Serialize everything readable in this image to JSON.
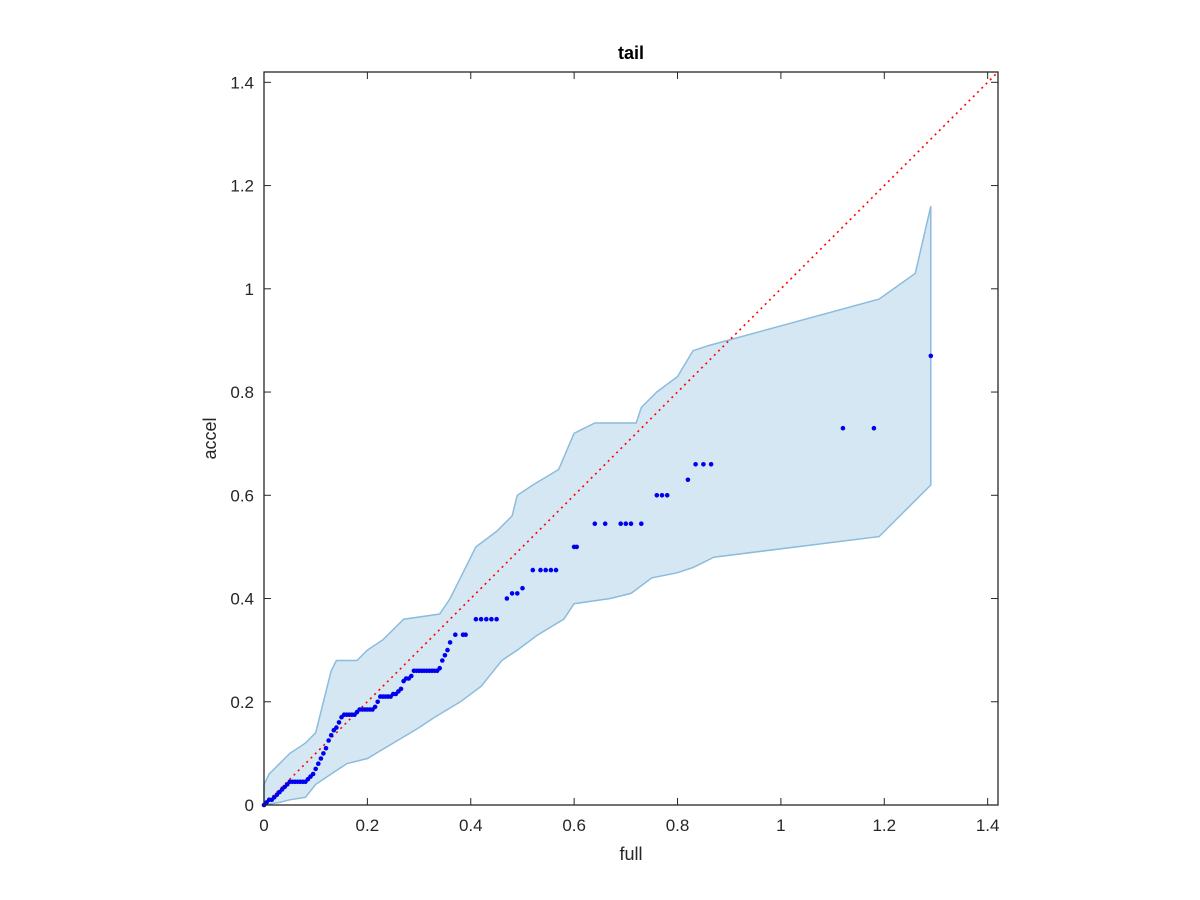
{
  "chart_data": {
    "type": "scatter",
    "title": "tail",
    "xlabel": "full",
    "ylabel": "accel",
    "xlim": [
      0,
      1.42
    ],
    "ylim": [
      0,
      1.42
    ],
    "xticks": [
      0,
      0.2,
      0.4,
      0.6,
      0.8,
      1,
      1.2,
      1.4
    ],
    "xtick_labels": [
      "0",
      "0.2",
      "0.4",
      "0.6",
      "0.8",
      "1",
      "1.2",
      "1.4"
    ],
    "yticks": [
      0,
      0.2,
      0.4,
      0.6,
      0.8,
      1,
      1.2,
      1.4
    ],
    "ytick_labels": [
      "0",
      "0.2",
      "0.4",
      "0.6",
      "0.8",
      "1",
      "1.2",
      "1.4"
    ],
    "grid": false,
    "colors": {
      "points": "#0000ee",
      "reference_line": "#ff0000",
      "band_fill": "#d6e7f4",
      "band_edge": "#8bbcdc",
      "axes": "#262626"
    },
    "reference_line": {
      "x": [
        0,
        1.42
      ],
      "y": [
        0,
        1.42
      ],
      "style": "dotted"
    },
    "band": {
      "upper": [
        [
          0,
          0.04
        ],
        [
          0.01,
          0.06
        ],
        [
          0.02,
          0.07
        ],
        [
          0.03,
          0.08
        ],
        [
          0.05,
          0.1
        ],
        [
          0.08,
          0.12
        ],
        [
          0.1,
          0.14
        ],
        [
          0.12,
          0.22
        ],
        [
          0.13,
          0.26
        ],
        [
          0.14,
          0.28
        ],
        [
          0.18,
          0.28
        ],
        [
          0.2,
          0.3
        ],
        [
          0.23,
          0.32
        ],
        [
          0.27,
          0.36
        ],
        [
          0.34,
          0.37
        ],
        [
          0.36,
          0.4
        ],
        [
          0.38,
          0.44
        ],
        [
          0.41,
          0.5
        ],
        [
          0.45,
          0.53
        ],
        [
          0.48,
          0.56
        ],
        [
          0.49,
          0.6
        ],
        [
          0.52,
          0.62
        ],
        [
          0.57,
          0.65
        ],
        [
          0.6,
          0.72
        ],
        [
          0.64,
          0.74
        ],
        [
          0.72,
          0.74
        ],
        [
          0.73,
          0.77
        ],
        [
          0.76,
          0.8
        ],
        [
          0.8,
          0.83
        ],
        [
          0.83,
          0.88
        ],
        [
          0.86,
          0.89
        ],
        [
          1.19,
          0.98
        ],
        [
          1.26,
          1.03
        ],
        [
          1.29,
          1.16
        ]
      ],
      "lower": [
        [
          0,
          0
        ],
        [
          0.03,
          0.005
        ],
        [
          0.05,
          0.01
        ],
        [
          0.08,
          0.015
        ],
        [
          0.1,
          0.04
        ],
        [
          0.13,
          0.06
        ],
        [
          0.16,
          0.08
        ],
        [
          0.2,
          0.09
        ],
        [
          0.25,
          0.12
        ],
        [
          0.3,
          0.15
        ],
        [
          0.33,
          0.17
        ],
        [
          0.38,
          0.2
        ],
        [
          0.42,
          0.23
        ],
        [
          0.46,
          0.28
        ],
        [
          0.49,
          0.3
        ],
        [
          0.53,
          0.33
        ],
        [
          0.58,
          0.36
        ],
        [
          0.6,
          0.39
        ],
        [
          0.67,
          0.4
        ],
        [
          0.71,
          0.41
        ],
        [
          0.75,
          0.44
        ],
        [
          0.8,
          0.45
        ],
        [
          0.83,
          0.46
        ],
        [
          0.85,
          0.47
        ],
        [
          0.87,
          0.48
        ],
        [
          1.19,
          0.52
        ],
        [
          1.22,
          0.55
        ],
        [
          1.29,
          0.62
        ]
      ]
    },
    "series": [
      {
        "x": [
          0.0,
          0.005,
          0.01,
          0.015,
          0.02,
          0.025,
          0.03,
          0.035,
          0.04,
          0.045,
          0.05,
          0.055,
          0.06,
          0.065,
          0.07,
          0.075,
          0.08,
          0.085,
          0.09,
          0.095,
          0.1,
          0.105,
          0.11,
          0.115,
          0.12,
          0.125,
          0.13,
          0.135,
          0.14,
          0.145,
          0.15,
          0.155,
          0.16,
          0.165,
          0.17,
          0.175,
          0.18,
          0.185,
          0.19,
          0.195,
          0.2,
          0.205,
          0.21,
          0.215,
          0.22,
          0.225,
          0.23,
          0.235,
          0.24,
          0.245,
          0.25,
          0.255,
          0.26,
          0.265,
          0.27,
          0.275,
          0.28,
          0.285,
          0.29,
          0.295,
          0.3,
          0.305,
          0.31,
          0.315,
          0.32,
          0.325,
          0.33,
          0.335,
          0.34,
          0.345,
          0.35,
          0.355,
          0.36,
          0.37,
          0.385,
          0.39,
          0.41,
          0.42,
          0.43,
          0.44,
          0.45,
          0.47,
          0.48,
          0.49,
          0.5,
          0.52,
          0.535,
          0.545,
          0.555,
          0.565,
          0.6,
          0.605,
          0.64,
          0.66,
          0.69,
          0.7,
          0.71,
          0.73,
          0.76,
          0.77,
          0.78,
          0.82,
          0.835,
          0.85,
          0.865,
          1.12,
          1.18,
          1.29
        ],
        "y": [
          0.0,
          0.005,
          0.01,
          0.01,
          0.015,
          0.02,
          0.025,
          0.03,
          0.035,
          0.04,
          0.045,
          0.045,
          0.045,
          0.045,
          0.045,
          0.045,
          0.045,
          0.05,
          0.055,
          0.06,
          0.07,
          0.08,
          0.09,
          0.1,
          0.11,
          0.125,
          0.135,
          0.145,
          0.15,
          0.16,
          0.17,
          0.175,
          0.175,
          0.175,
          0.175,
          0.175,
          0.18,
          0.185,
          0.185,
          0.185,
          0.185,
          0.185,
          0.185,
          0.19,
          0.2,
          0.21,
          0.21,
          0.21,
          0.21,
          0.21,
          0.215,
          0.215,
          0.22,
          0.225,
          0.24,
          0.245,
          0.245,
          0.25,
          0.26,
          0.26,
          0.26,
          0.26,
          0.26,
          0.26,
          0.26,
          0.26,
          0.26,
          0.26,
          0.265,
          0.28,
          0.29,
          0.3,
          0.315,
          0.33,
          0.33,
          0.33,
          0.36,
          0.36,
          0.36,
          0.36,
          0.36,
          0.4,
          0.41,
          0.41,
          0.42,
          0.455,
          0.455,
          0.455,
          0.455,
          0.455,
          0.5,
          0.5,
          0.545,
          0.545,
          0.545,
          0.545,
          0.545,
          0.545,
          0.6,
          0.6,
          0.6,
          0.63,
          0.66,
          0.66,
          0.66,
          0.73,
          0.73,
          0.87
        ]
      }
    ]
  }
}
